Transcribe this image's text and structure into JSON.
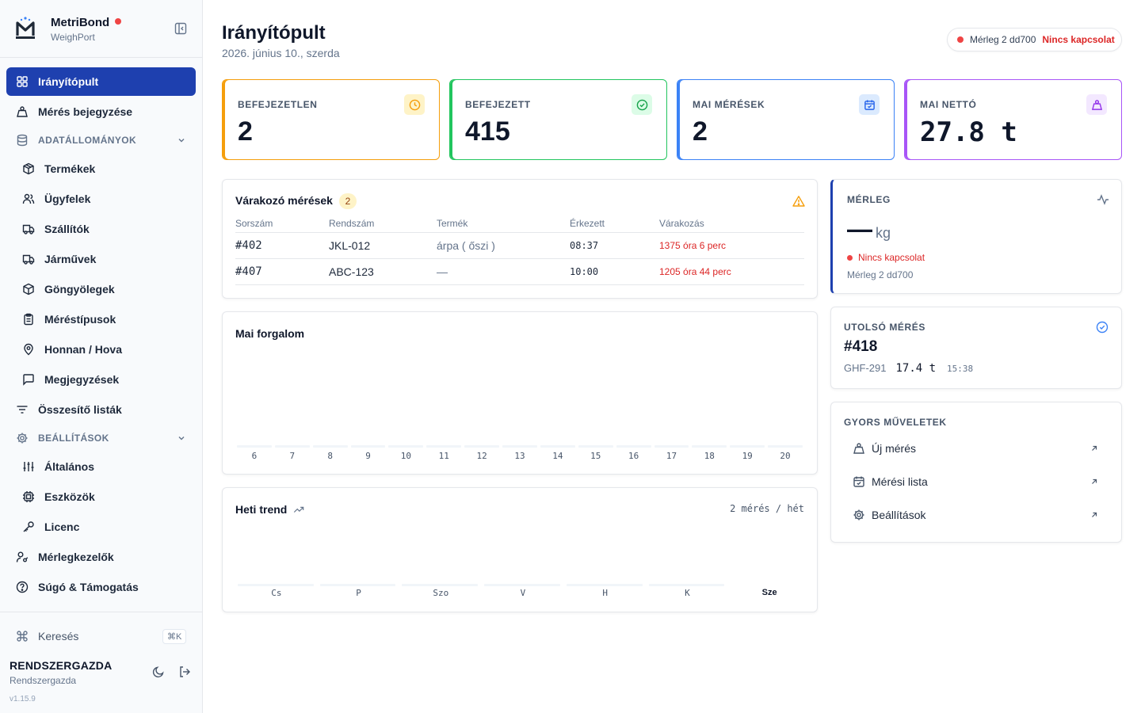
{
  "brand": {
    "name": "MetriBond",
    "subtitle": "WeighPort"
  },
  "nav": {
    "dashboard": "Irányítópult",
    "entry": "Mérés bejegyzése",
    "data_section": "ADATÁLLOMÁNYOK",
    "products": "Termékek",
    "clients": "Ügyfelek",
    "suppliers": "Szállítók",
    "vehicles": "Járművek",
    "packaging": "Göngyölegek",
    "types": "Méréstípusok",
    "from_to": "Honnan / Hova",
    "notes": "Megjegyzések",
    "summaries": "Összesítő listák",
    "settings_section": "BEÁLLÍTÁSOK",
    "general": "Általános",
    "devices": "Eszközök",
    "license": "Licenc",
    "operators": "Mérlegkezelők",
    "help": "Súgó & Támogatás"
  },
  "search": {
    "label": "Keresés",
    "shortcut": "⌘K"
  },
  "user": {
    "name": "RENDSZERGAZDA",
    "role": "Rendszergazda"
  },
  "version": "v1.15.9",
  "header": {
    "title": "Irányítópult",
    "date": "2026. június 10., szerda",
    "scale_name": "Mérleg 2 dd700",
    "scale_status": "Nincs kapcsolat"
  },
  "stats": [
    {
      "label": "BEFEJEZETLEN",
      "value": "2",
      "color": "#f59e0b",
      "icon": "clock-icon"
    },
    {
      "label": "BEFEJEZETT",
      "value": "415",
      "color": "#22c55e",
      "icon": "check-circle-icon"
    },
    {
      "label": "MAI MÉRÉSEK",
      "value": "2",
      "color": "#3b82f6",
      "icon": "calendar-icon"
    },
    {
      "label": "MAI NETTÓ",
      "value": "27.8 t",
      "color": "#a855f7",
      "icon": "weight-icon"
    }
  ],
  "pending": {
    "title": "Várakozó mérések",
    "count": "2",
    "columns": [
      "Sorszám",
      "Rendszám",
      "Termék",
      "Érkezett",
      "Várakozás"
    ],
    "rows": [
      {
        "id": "#402",
        "plate": "JKL-012",
        "product": "árpa ( őszi )",
        "arrived": "08:37",
        "waiting": "1375 óra 6 perc"
      },
      {
        "id": "#407",
        "plate": "ABC-123",
        "product": "—",
        "arrived": "10:00",
        "waiting": "1205 óra 44 perc"
      }
    ]
  },
  "traffic": {
    "title": "Mai forgalom",
    "hours": [
      "6",
      "7",
      "8",
      "9",
      "10",
      "11",
      "12",
      "13",
      "14",
      "15",
      "16",
      "17",
      "18",
      "19",
      "20"
    ]
  },
  "weekly": {
    "title": "Heti trend",
    "summary": "2 mérés / hét",
    "days": [
      "Cs",
      "P",
      "Szo",
      "V",
      "H",
      "K",
      "Sze"
    ],
    "current_day": "Sze"
  },
  "scale_card": {
    "label": "MÉRLEG",
    "value": "—",
    "unit": "kg",
    "status": "Nincs kapcsolat",
    "device": "Mérleg 2 dd700"
  },
  "last_measurement": {
    "label": "UTOLSÓ MÉRÉS",
    "id": "#418",
    "plate": "GHF-291",
    "weight": "17.4 t",
    "time": "15:38"
  },
  "quick_actions": {
    "label": "GYORS MŰVELETEK",
    "items": [
      "Új mérés",
      "Mérési lista",
      "Beállítások"
    ]
  }
}
